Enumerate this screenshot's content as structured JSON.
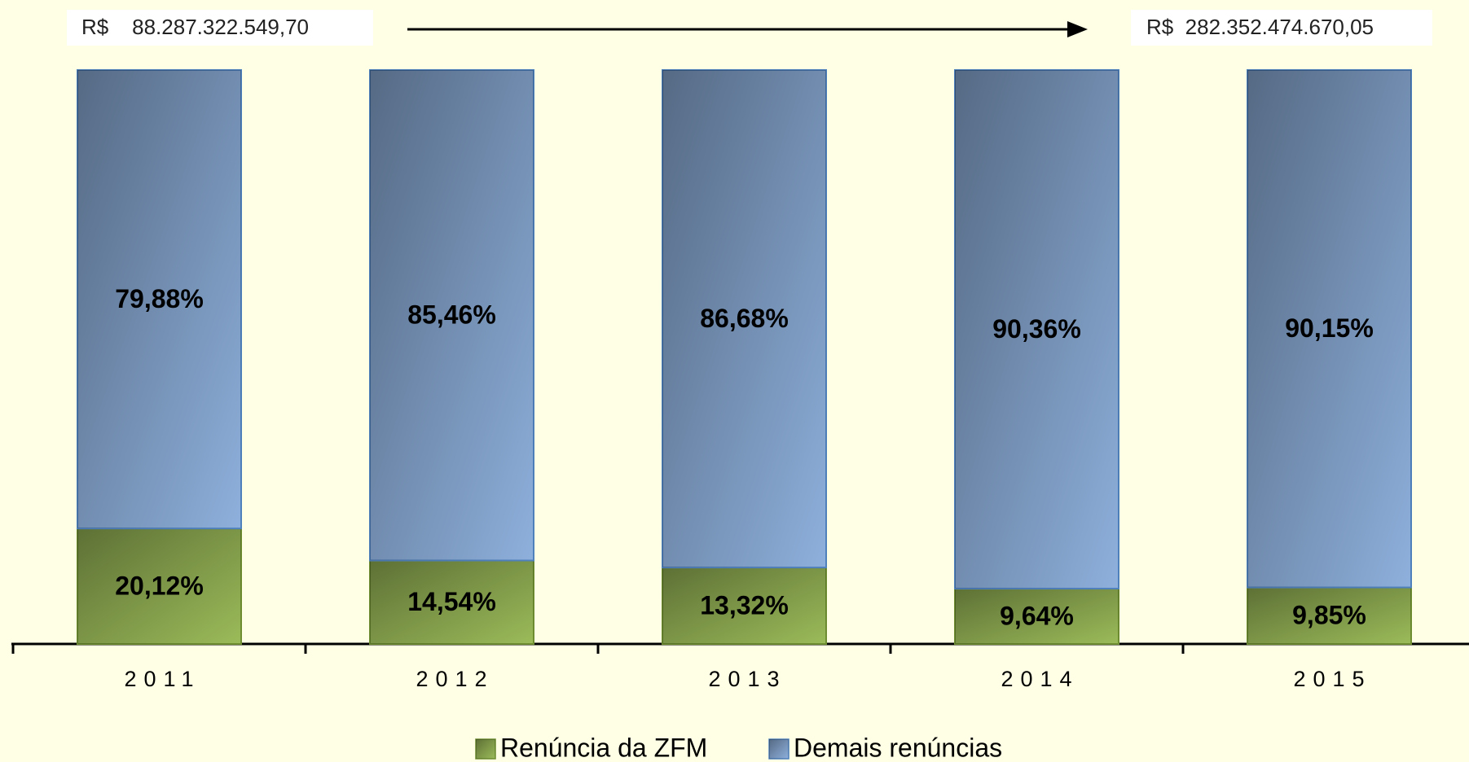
{
  "chart_data": {
    "type": "stacked_bar",
    "annotations": [
      "R$    88.287.322.549,70",
      "R$  282.352.474.670,05"
    ],
    "categories": [
      "2011",
      "2012",
      "2013",
      "2014",
      "2015"
    ],
    "series": [
      {
        "name": "Renúncia da ZFM",
        "color": "#9bbb59",
        "values": [
          20.12,
          14.54,
          13.32,
          9.64,
          9.85
        ],
        "value_labels": [
          "20,12%",
          "14,54%",
          "13,32%",
          "9,64%",
          "9,85%"
        ]
      },
      {
        "name": "Demais renúncias",
        "color": "#8eb0dc",
        "values": [
          79.88,
          85.46,
          86.68,
          90.36,
          90.15
        ],
        "value_labels": [
          "79,88%",
          "85,46%",
          "86,68%",
          "90,36%",
          "90,15%"
        ]
      }
    ],
    "ylim": [
      0,
      100
    ]
  }
}
